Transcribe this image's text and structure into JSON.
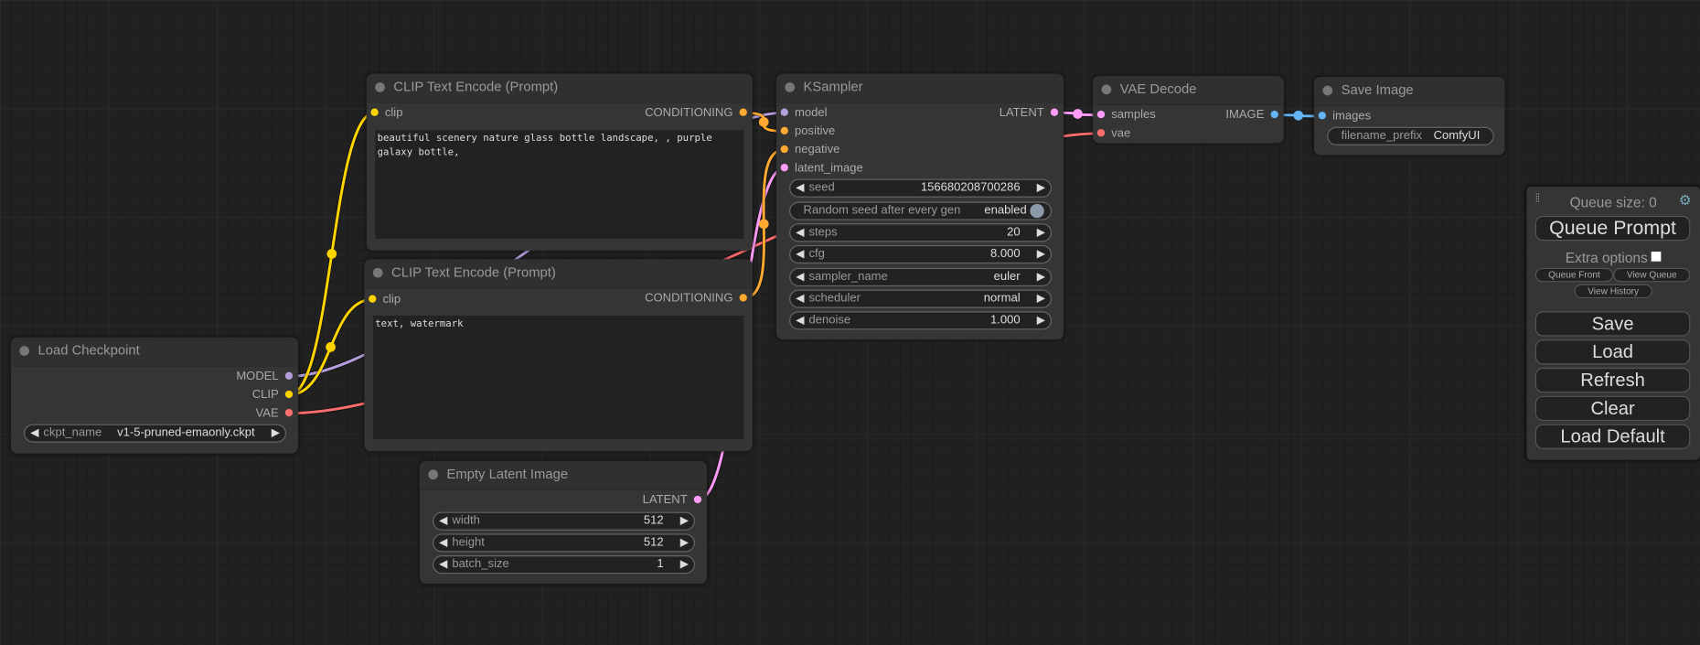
{
  "colors": {
    "model": "#b39ddb",
    "clip": "#ffd500",
    "vae": "#ff6e6e",
    "conditioning": "#ffa931",
    "latent": "#ff9cf9",
    "image": "#64b5f6"
  },
  "nodes": {
    "load_checkpoint": {
      "title": "Load Checkpoint",
      "outputs": [
        {
          "label": "MODEL",
          "type": "model"
        },
        {
          "label": "CLIP",
          "type": "clip"
        },
        {
          "label": "VAE",
          "type": "vae"
        }
      ],
      "widgets": [
        {
          "label": "ckpt_name",
          "value": "v1-5-pruned-emaonly.ckpt"
        }
      ]
    },
    "clip_pos": {
      "title": "CLIP Text Encode (Prompt)",
      "inputs": [
        {
          "label": "clip",
          "type": "clip"
        }
      ],
      "outputs": [
        {
          "label": "CONDITIONING",
          "type": "conditioning"
        }
      ],
      "text": "beautiful scenery nature glass bottle landscape, , purple galaxy bottle,"
    },
    "clip_neg": {
      "title": "CLIP Text Encode (Prompt)",
      "inputs": [
        {
          "label": "clip",
          "type": "clip"
        }
      ],
      "outputs": [
        {
          "label": "CONDITIONING",
          "type": "conditioning"
        }
      ],
      "text": "text, watermark"
    },
    "empty_latent": {
      "title": "Empty Latent Image",
      "outputs": [
        {
          "label": "LATENT",
          "type": "latent"
        }
      ],
      "widgets": [
        {
          "label": "width",
          "value": "512"
        },
        {
          "label": "height",
          "value": "512"
        },
        {
          "label": "batch_size",
          "value": "1"
        }
      ]
    },
    "ksampler": {
      "title": "KSampler",
      "inputs": [
        {
          "label": "model",
          "type": "model"
        },
        {
          "label": "positive",
          "type": "conditioning"
        },
        {
          "label": "negative",
          "type": "conditioning"
        },
        {
          "label": "latent_image",
          "type": "latent"
        }
      ],
      "outputs": [
        {
          "label": "LATENT",
          "type": "latent"
        }
      ],
      "widgets": [
        {
          "label": "seed",
          "value": "156680208700286"
        },
        {
          "label": "Random seed after every gen",
          "value": "enabled",
          "toggle": true
        },
        {
          "label": "steps",
          "value": "20"
        },
        {
          "label": "cfg",
          "value": "8.000"
        },
        {
          "label": "sampler_name",
          "value": "euler"
        },
        {
          "label": "scheduler",
          "value": "normal"
        },
        {
          "label": "denoise",
          "value": "1.000"
        }
      ]
    },
    "vae_decode": {
      "title": "VAE Decode",
      "inputs": [
        {
          "label": "samples",
          "type": "latent"
        },
        {
          "label": "vae",
          "type": "vae"
        }
      ],
      "outputs": [
        {
          "label": "IMAGE",
          "type": "image"
        }
      ]
    },
    "save_image": {
      "title": "Save Image",
      "inputs": [
        {
          "label": "images",
          "type": "image"
        }
      ],
      "widgets": [
        {
          "label": "filename_prefix",
          "value": "ComfyUI",
          "text": true
        }
      ]
    }
  },
  "panel": {
    "queue_size": "Queue size: 0",
    "queue_prompt": "Queue Prompt",
    "extra_options": "Extra options",
    "queue_front": "Queue Front",
    "view_queue": "View Queue",
    "view_history": "View History",
    "save": "Save",
    "load": "Load",
    "refresh": "Refresh",
    "clear": "Clear",
    "load_default": "Load Default",
    "settings_icon": "gear-icon",
    "drag_icon": "drag-handle-icon"
  }
}
